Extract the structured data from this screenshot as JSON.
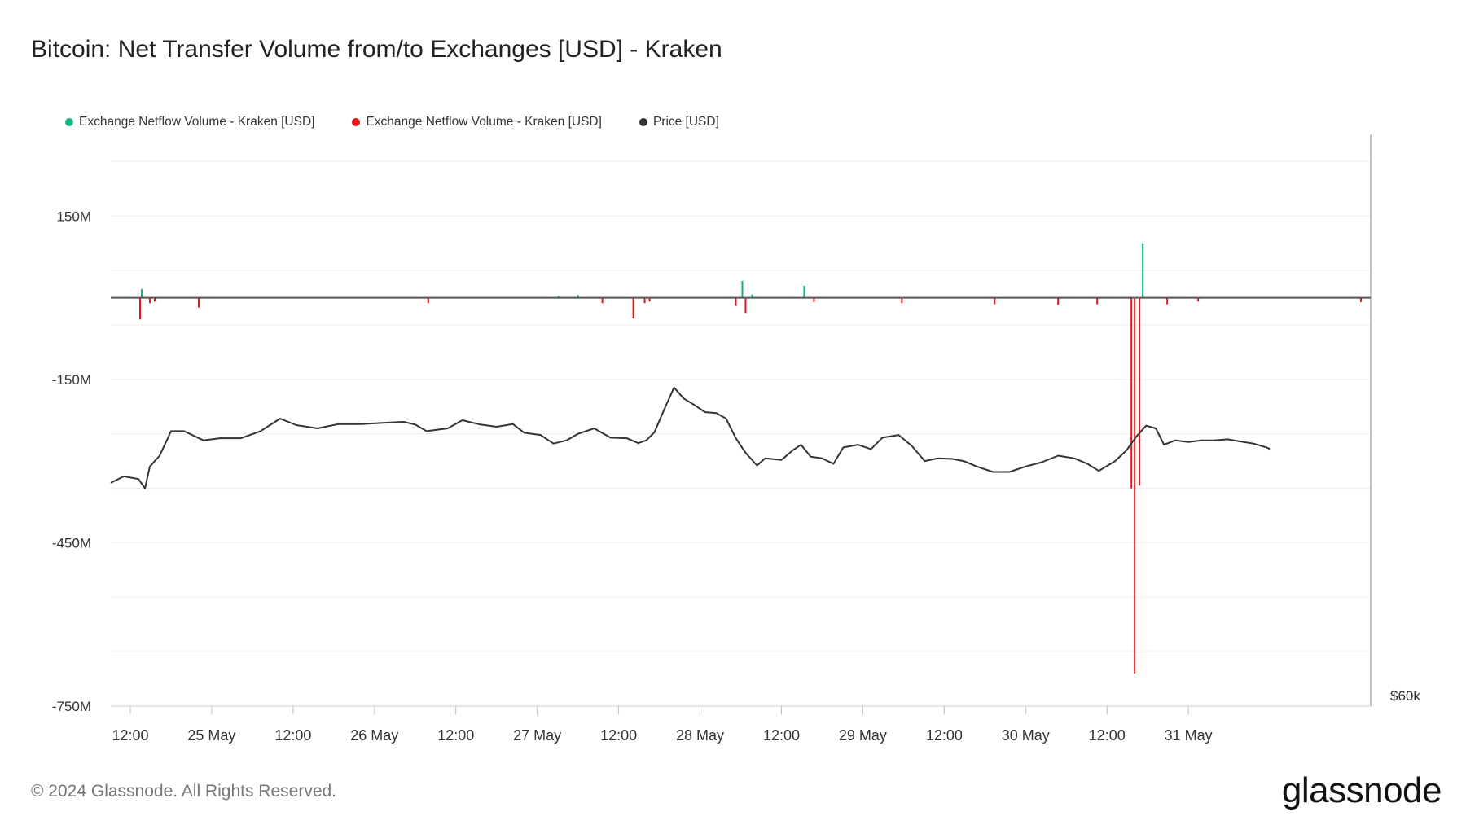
{
  "title": "Bitcoin: Net Transfer Volume from/to Exchanges [USD] - Kraken",
  "footer": "© 2024 Glassnode. All Rights Reserved.",
  "brand": "glassnode",
  "legend": [
    {
      "label": "Exchange Netflow Volume - Kraken [USD]",
      "color": "#0fb67a"
    },
    {
      "label": "Exchange Netflow Volume - Kraken [USD]",
      "color": "#e5151a"
    },
    {
      "label": "Price [USD]",
      "color": "#333333"
    }
  ],
  "chart_data": {
    "type": "bar",
    "title": "Bitcoin: Net Transfer Volume from/to Exchanges [USD] - Kraken",
    "y_left": {
      "ticks": [
        150000000,
        -150000000,
        -450000000,
        -750000000
      ],
      "tick_labels": [
        "150M",
        "-150M",
        "-450M",
        "-750M"
      ],
      "range": [
        -750000000,
        300000000
      ]
    },
    "y_right": {
      "tick_labels": [
        "$60k"
      ]
    },
    "x": {
      "range": [
        -0.12,
        7.62
      ],
      "ticks": [
        0.0,
        0.5,
        1.0,
        1.5,
        2.0,
        2.5,
        3.0,
        3.5,
        4.0,
        4.5,
        5.0,
        5.5,
        6.0,
        6.5
      ],
      "tick_labels": [
        "12:00",
        "25 May",
        "12:00",
        "26 May",
        "12:00",
        "27 May",
        "12:00",
        "28 May",
        "12:00",
        "29 May",
        "12:00",
        "30 May",
        "12:00",
        "31 May"
      ]
    },
    "grid": true,
    "legend_position": "top-left",
    "series": [
      {
        "name": "Exchange Netflow Volume - Kraken [USD]",
        "color": "#0fb67a",
        "points": [
          [
            0.07,
            16000000
          ],
          [
            2.63,
            3000000
          ],
          [
            2.75,
            5000000
          ],
          [
            3.76,
            31000000
          ],
          [
            3.82,
            6000000
          ],
          [
            4.14,
            22000000
          ],
          [
            6.22,
            100000000
          ]
        ]
      },
      {
        "name": "Exchange Netflow Volume - Kraken [USD]",
        "color": "#e5151a",
        "points": [
          [
            0.06,
            -40000000
          ],
          [
            0.12,
            -10000000
          ],
          [
            0.15,
            -7000000
          ],
          [
            0.42,
            -18000000
          ],
          [
            1.83,
            -10000000
          ],
          [
            2.9,
            -10000000
          ],
          [
            3.09,
            -38000000
          ],
          [
            3.16,
            -10000000
          ],
          [
            3.19,
            -7000000
          ],
          [
            3.72,
            -15000000
          ],
          [
            3.78,
            -28000000
          ],
          [
            4.2,
            -8000000
          ],
          [
            4.74,
            -10000000
          ],
          [
            5.31,
            -12000000
          ],
          [
            5.7,
            -13000000
          ],
          [
            5.94,
            -12000000
          ],
          [
            6.15,
            -350000000
          ],
          [
            6.17,
            -690000000
          ],
          [
            6.2,
            -345000000
          ],
          [
            6.37,
            -12000000
          ],
          [
            6.56,
            -7000000
          ],
          [
            7.56,
            -8000000
          ]
        ]
      },
      {
        "name": "Price [USD]",
        "color": "#333333",
        "axis": "right",
        "points": [
          [
            -0.12,
            -340000000
          ],
          [
            -0.04,
            -328000000
          ],
          [
            0.05,
            -333000000
          ],
          [
            0.09,
            -350000000
          ],
          [
            0.12,
            -310000000
          ],
          [
            0.18,
            -290000000
          ],
          [
            0.25,
            -245000000
          ],
          [
            0.33,
            -245000000
          ],
          [
            0.45,
            -262000000
          ],
          [
            0.55,
            -258000000
          ],
          [
            0.68,
            -258000000
          ],
          [
            0.8,
            -245000000
          ],
          [
            0.92,
            -222000000
          ],
          [
            1.02,
            -234000000
          ],
          [
            1.15,
            -240000000
          ],
          [
            1.28,
            -232000000
          ],
          [
            1.42,
            -232000000
          ],
          [
            1.55,
            -230000000
          ],
          [
            1.68,
            -228000000
          ],
          [
            1.75,
            -233000000
          ],
          [
            1.82,
            -245000000
          ],
          [
            1.95,
            -240000000
          ],
          [
            2.04,
            -225000000
          ],
          [
            2.15,
            -233000000
          ],
          [
            2.25,
            -237000000
          ],
          [
            2.35,
            -232000000
          ],
          [
            2.42,
            -248000000
          ],
          [
            2.52,
            -252000000
          ],
          [
            2.6,
            -268000000
          ],
          [
            2.68,
            -262000000
          ],
          [
            2.75,
            -250000000
          ],
          [
            2.85,
            -240000000
          ],
          [
            2.95,
            -257000000
          ],
          [
            3.05,
            -258000000
          ],
          [
            3.12,
            -267000000
          ],
          [
            3.17,
            -262000000
          ],
          [
            3.22,
            -247000000
          ],
          [
            3.28,
            -205000000
          ],
          [
            3.34,
            -165000000
          ],
          [
            3.4,
            -185000000
          ],
          [
            3.47,
            -198000000
          ],
          [
            3.53,
            -210000000
          ],
          [
            3.6,
            -212000000
          ],
          [
            3.66,
            -222000000
          ],
          [
            3.72,
            -258000000
          ],
          [
            3.78,
            -285000000
          ],
          [
            3.85,
            -308000000
          ],
          [
            3.9,
            -295000000
          ],
          [
            4.0,
            -298000000
          ],
          [
            4.07,
            -280000000
          ],
          [
            4.12,
            -270000000
          ],
          [
            4.18,
            -292000000
          ],
          [
            4.25,
            -295000000
          ],
          [
            4.32,
            -305000000
          ],
          [
            4.38,
            -275000000
          ],
          [
            4.47,
            -270000000
          ],
          [
            4.55,
            -278000000
          ],
          [
            4.62,
            -257000000
          ],
          [
            4.72,
            -252000000
          ],
          [
            4.8,
            -272000000
          ],
          [
            4.88,
            -300000000
          ],
          [
            4.96,
            -295000000
          ],
          [
            5.05,
            -296000000
          ],
          [
            5.12,
            -300000000
          ],
          [
            5.2,
            -310000000
          ],
          [
            5.3,
            -320000000
          ],
          [
            5.4,
            -320000000
          ],
          [
            5.5,
            -310000000
          ],
          [
            5.6,
            -302000000
          ],
          [
            5.7,
            -290000000
          ],
          [
            5.8,
            -295000000
          ],
          [
            5.88,
            -305000000
          ],
          [
            5.95,
            -318000000
          ],
          [
            6.05,
            -300000000
          ],
          [
            6.12,
            -280000000
          ],
          [
            6.18,
            -255000000
          ],
          [
            6.24,
            -235000000
          ],
          [
            6.3,
            -240000000
          ],
          [
            6.35,
            -270000000
          ],
          [
            6.42,
            -262000000
          ],
          [
            6.5,
            -265000000
          ],
          [
            6.58,
            -262000000
          ],
          [
            6.66,
            -262000000
          ],
          [
            6.74,
            -260000000
          ],
          [
            6.82,
            -264000000
          ],
          [
            6.9,
            -268000000
          ],
          [
            6.98,
            -275000000
          ],
          [
            7.0,
            -278000000
          ]
        ]
      }
    ]
  }
}
